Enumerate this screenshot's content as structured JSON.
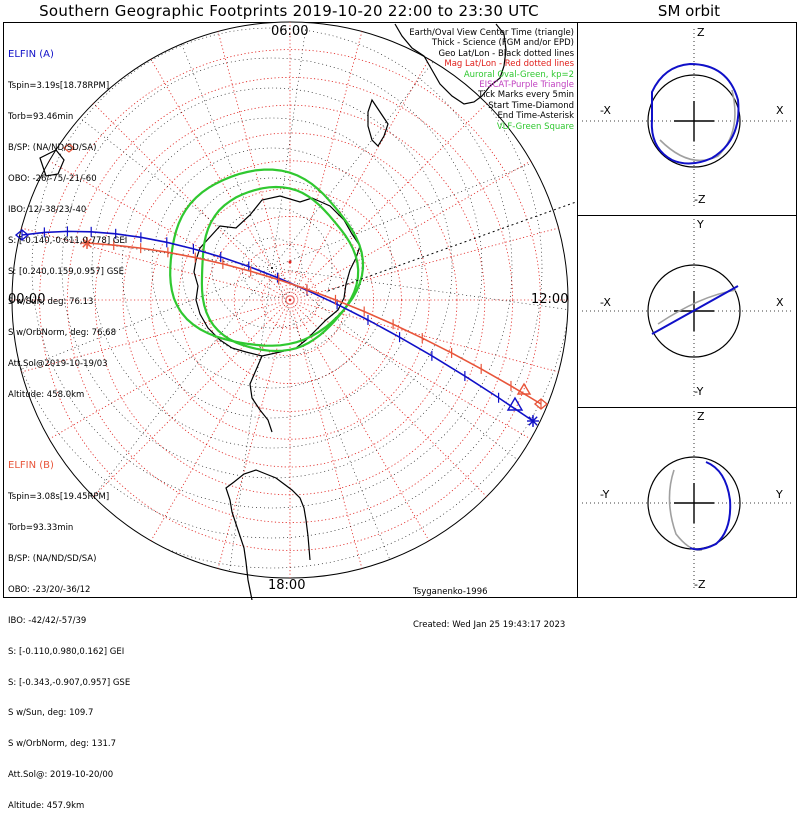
{
  "header": {
    "title": "Southern Geographic Footprints 2019-10-20 22:00 to 23:30 UTC",
    "orbit_title": "SM orbit"
  },
  "map_labels": {
    "top": "06:00",
    "left": "00:00",
    "right": "12:00",
    "bottom": "18:00"
  },
  "elfin_a": {
    "name": "ELFIN (A)",
    "lines": [
      "Tspin=3.19s[18.78RPM]",
      "Torb=93.46min",
      "B/SP: (NA/ND/SD/SA)",
      "OBO: -26/-75/-21/-60",
      "IBO: 12/-38/23/-40",
      "S: [-0.140,-0.611,0.778] GEI",
      "S: [0.240,0.159,0.957] GSE",
      "S w/Sun, deg: 76.13",
      "S w/OrbNorm, deg: 76.68",
      "Att.Sol@2019-10-19/03",
      "Altitude: 458.0km"
    ],
    "color": "#1010c8"
  },
  "elfin_b": {
    "name": "ELFIN (B)",
    "lines": [
      "Tspin=3.08s[19.45RPM]",
      "Torb=93.33min",
      "B/SP: (NA/ND/SD/SA)",
      "OBO: -23/20/-36/12",
      "IBO: -42/42/-57/39",
      "S: [-0.110,0.980,0.162] GEI",
      "S: [-0.343,-0.907,0.957] GSE",
      "S w/Sun, deg: 109.7",
      "S w/OrbNorm, deg: 131.7",
      "Att.Sol@: 2019-10-20/00",
      "Altitude: 457.9km"
    ],
    "color": "#e8553a"
  },
  "legend": [
    {
      "text": "Earth/Oval View Center Time (triangle)",
      "color": "#000000"
    },
    {
      "text": "Thick - Science (FGM and/or EPD)",
      "color": "#000000"
    },
    {
      "text": "Geo Lat/Lon - Black dotted lines",
      "color": "#000000"
    },
    {
      "text": "Mag Lat/Lon - Red dotted lines",
      "color": "#e0201c"
    },
    {
      "text": "Auroral Oval-Green, kp=2",
      "color": "#30c830"
    },
    {
      "text": "EISCAT-Purple Triangle",
      "color": "#c040c0"
    },
    {
      "text": "Tick Marks every 5min",
      "color": "#000000"
    },
    {
      "text": "Start Time-Diamond",
      "color": "#000000"
    },
    {
      "text": "End Time-Asterisk",
      "color": "#000000"
    },
    {
      "text": "VLF-Green Square",
      "color": "#30c830"
    }
  ],
  "credits": [
    "Tsyganenko-1996",
    "Created: Wed Jan 25 19:43:17 2023"
  ],
  "orbit_panels": [
    {
      "top": "Z",
      "bottom": "-Z",
      "left": "-X",
      "right": "X"
    },
    {
      "top": "Y",
      "bottom": "-Y",
      "left": "-X",
      "right": "X"
    },
    {
      "top": "Z",
      "bottom": "-Z",
      "left": "-Y",
      "right": "Y"
    }
  ],
  "colors": {
    "elfin_a": "#1010c8",
    "elfin_b": "#e8553a",
    "oval": "#30c830",
    "mag_grid": "#e0201c",
    "geo_grid": "#000000"
  }
}
